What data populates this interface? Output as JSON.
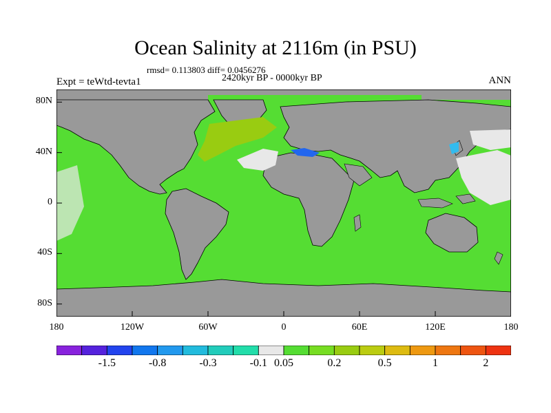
{
  "title": "Ocean Salinity at 2116m (in PSU)",
  "stats": "rmsd= 0.113803 diff= 0.0456276",
  "period": "2420kyr BP - 0000kyr BP",
  "experiment": "Expt = teWtd-tevta1",
  "season": "ANN",
  "map": {
    "lat_ticks": [
      "80N",
      "40N",
      "0",
      "40S",
      "80S"
    ],
    "lat_values": [
      80,
      40,
      0,
      -40,
      -80
    ],
    "lon_ticks": [
      "180",
      "120W",
      "60W",
      "0",
      "60E",
      "120E",
      "180"
    ],
    "lon_values": [
      -180,
      -120,
      -60,
      0,
      60,
      120,
      180
    ],
    "colors": {
      "land": "#999999",
      "ocean_main": "#55dd33",
      "ocean_upper_band": "#99cc11",
      "near_zero": "#e8e8e8",
      "negative_pocket": "#2266ee",
      "negative_light": "#33bbee",
      "coast": "#000000"
    }
  },
  "colorbar": {
    "colors": [
      "#8822dd",
      "#5522dd",
      "#2244ee",
      "#1177ee",
      "#2299ee",
      "#22bbdd",
      "#22ccbb",
      "#22ddaa",
      "#e8e8e8",
      "#55dd33",
      "#77dd22",
      "#99cc11",
      "#bbcc11",
      "#ddbb11",
      "#ee9911",
      "#ee7711",
      "#ee5511",
      "#ee3311"
    ],
    "tick_labels": [
      "-1.5",
      "-0.8",
      "-0.3",
      "-0.1",
      "0.05",
      "0.2",
      "0.5",
      "1",
      "2"
    ],
    "tick_boundaries": [
      2,
      4,
      6,
      8,
      9,
      11,
      13,
      15,
      17
    ]
  }
}
